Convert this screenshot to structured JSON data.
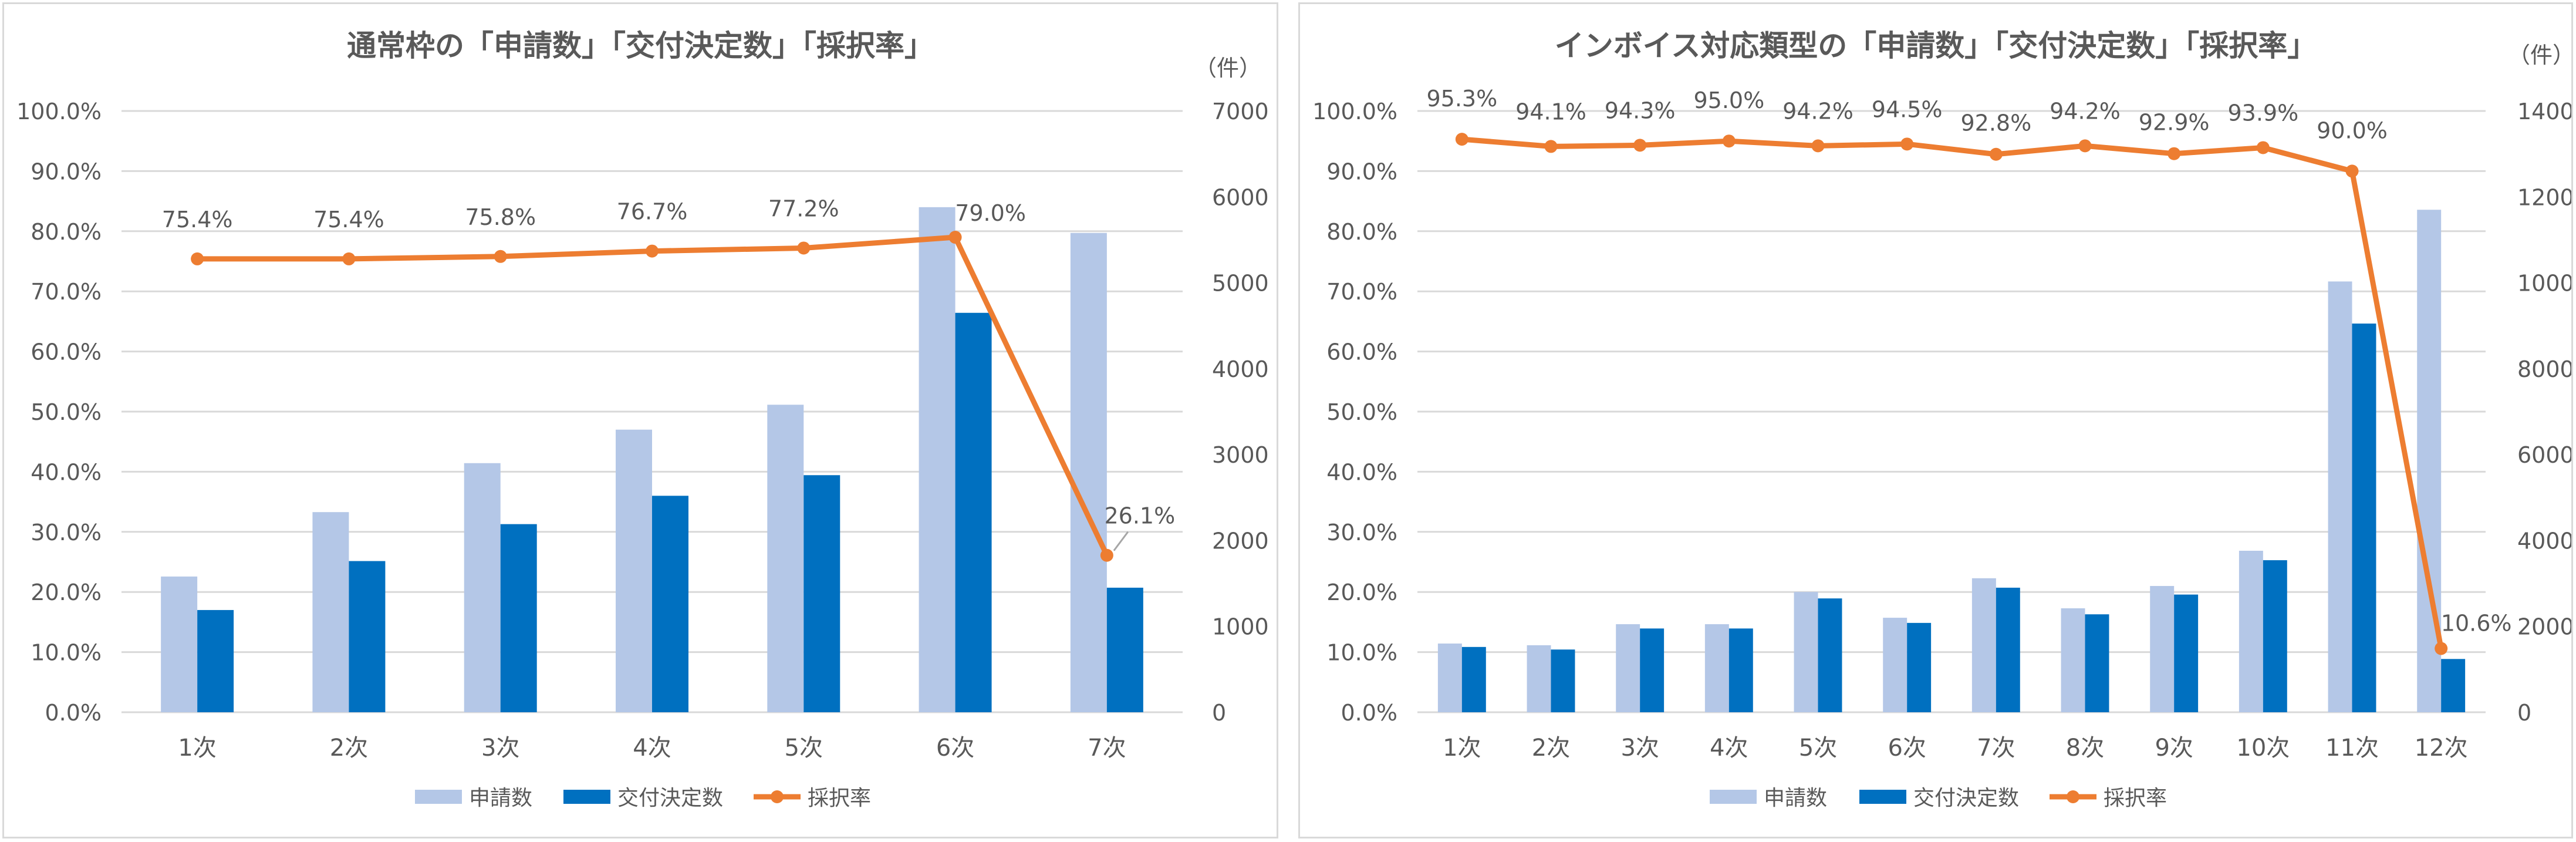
{
  "colors": {
    "applications": "#b4c7e7",
    "grants": "#0070c0",
    "rate": "#ed7d31",
    "grid": "#d9d9d9",
    "axis_text": "#595959",
    "title_text": "#595959"
  },
  "chart_data": [
    {
      "type": "bar",
      "title": "通常枠の「申請数」「交付決定数」「採択率」",
      "categories": [
        "1次",
        "2次",
        "3次",
        "4次",
        "5次",
        "6次",
        "7次"
      ],
      "series": [
        {
          "name": "申請数",
          "kind": "bar",
          "axis": "right",
          "values": [
            1580,
            2330,
            2900,
            3290,
            3580,
            5880,
            5580
          ]
        },
        {
          "name": "交付決定数",
          "kind": "bar",
          "axis": "right",
          "values": [
            1190,
            1760,
            2190,
            2520,
            2760,
            4650,
            1450
          ]
        },
        {
          "name": "採択率",
          "kind": "line",
          "axis": "left",
          "values": [
            75.4,
            75.4,
            75.8,
            76.7,
            77.2,
            79.0,
            26.1
          ],
          "labels": [
            "75.4%",
            "75.4%",
            "75.8%",
            "76.7%",
            "77.2%",
            "79.0%",
            "26.1%"
          ]
        }
      ],
      "left_axis": {
        "min": 0,
        "max": 100,
        "step": 10,
        "ticks": [
          "0.0%",
          "10.0%",
          "20.0%",
          "30.0%",
          "40.0%",
          "50.0%",
          "60.0%",
          "70.0%",
          "80.0%",
          "90.0%",
          "100.0%"
        ]
      },
      "right_axis": {
        "min": 0,
        "max": 7000,
        "step": 1000,
        "unit": "（件）",
        "ticks": [
          "0",
          "1000",
          "2000",
          "3000",
          "4000",
          "5000",
          "6000",
          "7000"
        ]
      },
      "grid": true,
      "legend": "bottom"
    },
    {
      "type": "bar",
      "title": "インボイス対応類型の「申請数」「交付決定数」「採択率」",
      "categories": [
        "1次",
        "2次",
        "3次",
        "4次",
        "5次",
        "6次",
        "7次",
        "8次",
        "9次",
        "10次",
        "11次",
        "12次"
      ],
      "series": [
        {
          "name": "申請数",
          "kind": "bar",
          "axis": "right",
          "values": [
            1600,
            1560,
            2050,
            2050,
            2800,
            2200,
            3120,
            2420,
            2940,
            3760,
            10030,
            11700
          ]
        },
        {
          "name": "交付決定数",
          "kind": "bar",
          "axis": "right",
          "values": [
            1520,
            1460,
            1950,
            1950,
            2650,
            2080,
            2900,
            2280,
            2740,
            3540,
            9050,
            1240
          ]
        },
        {
          "name": "採択率",
          "kind": "line",
          "axis": "left",
          "values": [
            95.3,
            94.1,
            94.3,
            95.0,
            94.2,
            94.5,
            92.8,
            94.2,
            92.9,
            93.9,
            90.0,
            10.6
          ],
          "labels": [
            "95.3%",
            "94.1%",
            "94.3%",
            "95.0%",
            "94.2%",
            "94.5%",
            "92.8%",
            "94.2%",
            "92.9%",
            "93.9%",
            "90.0%",
            "10.6%"
          ]
        }
      ],
      "left_axis": {
        "min": 0,
        "max": 100,
        "step": 10,
        "ticks": [
          "0.0%",
          "10.0%",
          "20.0%",
          "30.0%",
          "40.0%",
          "50.0%",
          "60.0%",
          "70.0%",
          "80.0%",
          "90.0%",
          "100.0%"
        ]
      },
      "right_axis": {
        "min": 0,
        "max": 14000,
        "step": 2000,
        "unit": "（件）",
        "ticks": [
          "0",
          "2000",
          "4000",
          "6000",
          "8000",
          "10000",
          "12000",
          "14000"
        ]
      },
      "grid": true,
      "legend": "bottom"
    }
  ]
}
